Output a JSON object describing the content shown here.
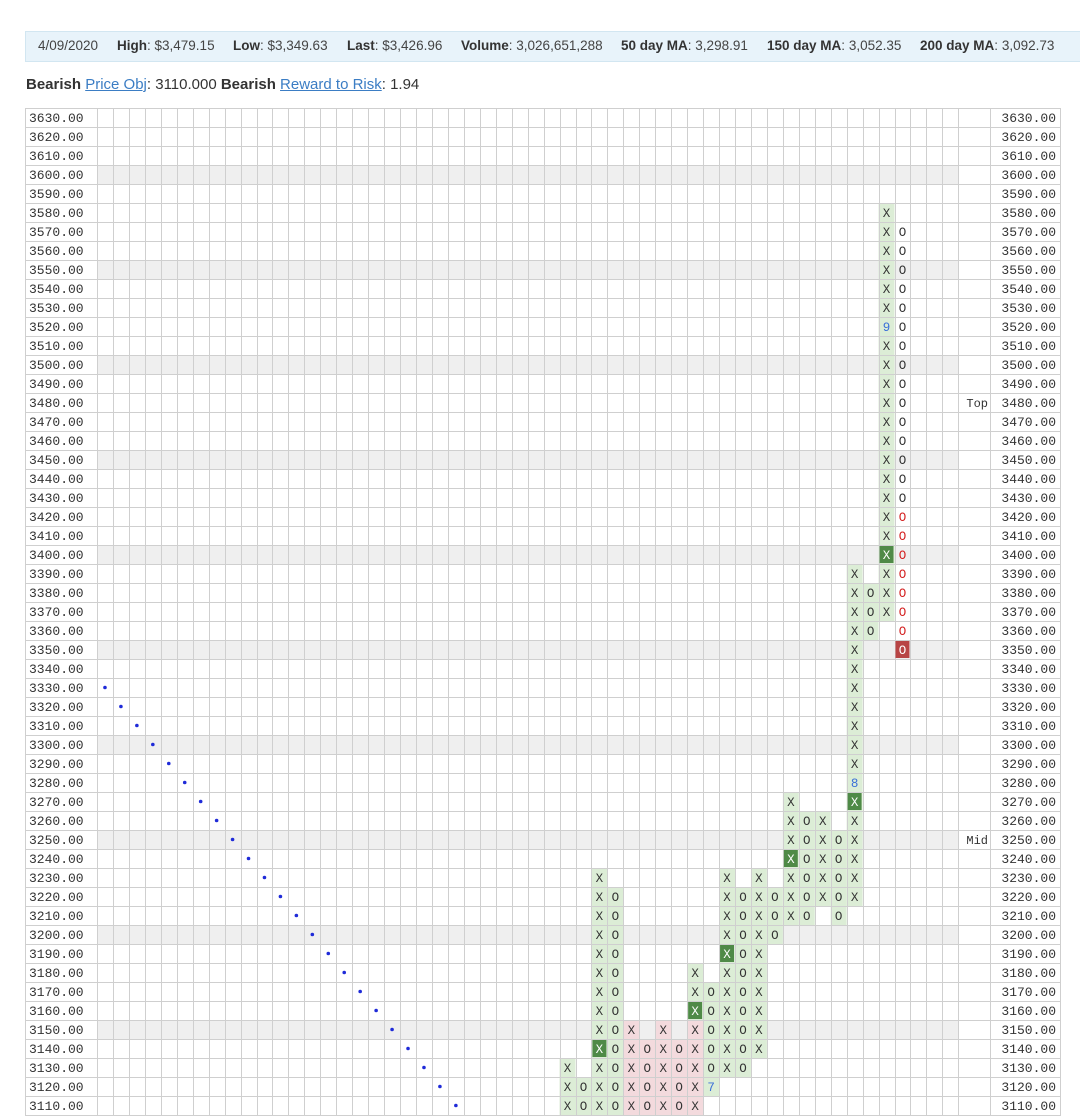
{
  "stats": {
    "date": "4/09/2020",
    "high_label": "High",
    "high": "$3,479.15",
    "low_label": "Low",
    "low": "$3,349.63",
    "last_label": "Last",
    "last": "$3,426.96",
    "volume_label": "Volume",
    "volume": "3,026,651,288",
    "ma50_label": "50 day MA",
    "ma50": "3,298.91",
    "ma150_label": "150 day MA",
    "ma150": "3,052.35",
    "ma200_label": "200 day MA",
    "ma200": "3,092.73"
  },
  "objective": {
    "bearish1": "Bearish",
    "price_obj_link": "Price Obj",
    "price_obj_value": ": 3110.000 ",
    "bearish2": "Bearish",
    "reward_link": "Reward to Risk",
    "reward_value": ": 1.94"
  },
  "chart_data": {
    "type": "point-and-figure",
    "box_size": 10,
    "y_labels": [
      "3630.00",
      "3620.00",
      "3610.00",
      "3600.00",
      "3590.00",
      "3580.00",
      "3570.00",
      "3560.00",
      "3550.00",
      "3540.00",
      "3530.00",
      "3520.00",
      "3510.00",
      "3500.00",
      "3490.00",
      "3480.00",
      "3470.00",
      "3460.00",
      "3450.00",
      "3440.00",
      "3430.00",
      "3420.00",
      "3410.00",
      "3400.00",
      "3390.00",
      "3380.00",
      "3370.00",
      "3360.00",
      "3350.00",
      "3340.00",
      "3330.00",
      "3320.00",
      "3310.00",
      "3300.00",
      "3290.00",
      "3280.00",
      "3270.00",
      "3260.00",
      "3250.00",
      "3240.00",
      "3230.00",
      "3220.00",
      "3210.00",
      "3200.00",
      "3190.00",
      "3180.00",
      "3170.00",
      "3160.00",
      "3150.00",
      "3140.00",
      "3130.00",
      "3120.00",
      "3110.00"
    ],
    "y_range": [
      3110,
      3630
    ],
    "num_columns": 54,
    "highlight_levels": [
      3600,
      3550,
      3500,
      3450,
      3400,
      3350,
      3300,
      3250,
      3200,
      3150
    ],
    "price_annotations": [
      {
        "level": 3480,
        "text": "Top"
      },
      {
        "level": 3250,
        "text": "Mid"
      }
    ],
    "trendline_dots": [
      {
        "col": 0,
        "level": 3330
      },
      {
        "col": 1,
        "level": 3320
      },
      {
        "col": 2,
        "level": 3310
      },
      {
        "col": 3,
        "level": 3300
      },
      {
        "col": 4,
        "level": 3290
      },
      {
        "col": 5,
        "level": 3280
      },
      {
        "col": 6,
        "level": 3270
      },
      {
        "col": 7,
        "level": 3260
      },
      {
        "col": 8,
        "level": 3250
      },
      {
        "col": 9,
        "level": 3240
      },
      {
        "col": 10,
        "level": 3230
      },
      {
        "col": 11,
        "level": 3220
      },
      {
        "col": 12,
        "level": 3210
      },
      {
        "col": 13,
        "level": 3200
      },
      {
        "col": 14,
        "level": 3190
      },
      {
        "col": 15,
        "level": 3180
      },
      {
        "col": 16,
        "level": 3170
      },
      {
        "col": 17,
        "level": 3160
      },
      {
        "col": 18,
        "level": 3150
      },
      {
        "col": 19,
        "level": 3140
      },
      {
        "col": 20,
        "level": 3130
      },
      {
        "col": 21,
        "level": 3120
      },
      {
        "col": 22,
        "level": 3110
      }
    ],
    "columns": [
      {
        "col": 29,
        "type": "X",
        "bg": "green",
        "low": 3110,
        "high": 3130
      },
      {
        "col": 30,
        "type": "O",
        "bg": "green",
        "low": 3110,
        "high": 3120
      },
      {
        "col": 31,
        "type": "X",
        "bg": "green",
        "low": 3110,
        "high": 3230,
        "boxed": [
          3140
        ]
      },
      {
        "col": 32,
        "type": "O",
        "bg": "green",
        "low": 3110,
        "high": 3220
      },
      {
        "col": 33,
        "type": "X",
        "bg": "red",
        "low": 3110,
        "high": 3150
      },
      {
        "col": 34,
        "type": "O",
        "bg": "red",
        "low": 3110,
        "high": 3140
      },
      {
        "col": 35,
        "type": "X",
        "bg": "red",
        "low": 3110,
        "high": 3150
      },
      {
        "col": 36,
        "type": "O",
        "bg": "red",
        "low": 3110,
        "high": 3140
      },
      {
        "col": 37,
        "type": "X",
        "bg": "red",
        "low": 3110,
        "high": 3180,
        "boxed": [
          3160
        ],
        "greenbg": [
          3160,
          3170,
          3180
        ]
      },
      {
        "col": 38,
        "type": "O",
        "bg": "green",
        "low": 3120,
        "high": 3170,
        "labels": {
          "3120": "7"
        }
      },
      {
        "col": 39,
        "type": "X",
        "bg": "green",
        "low": 3130,
        "high": 3230,
        "boxed": [
          3190
        ]
      },
      {
        "col": 40,
        "type": "O",
        "bg": "green",
        "low": 3130,
        "high": 3220
      },
      {
        "col": 41,
        "type": "X",
        "bg": "green",
        "low": 3140,
        "high": 3230
      },
      {
        "col": 42,
        "type": "O",
        "bg": "green",
        "low": 3200,
        "high": 3220
      },
      {
        "col": 43,
        "type": "X",
        "bg": "green",
        "low": 3210,
        "high": 3270,
        "boxed": [
          3240
        ]
      },
      {
        "col": 44,
        "type": "O",
        "bg": "green",
        "low": 3210,
        "high": 3260
      },
      {
        "col": 45,
        "type": "X",
        "bg": "green",
        "low": 3220,
        "high": 3260
      },
      {
        "col": 46,
        "type": "O",
        "bg": "green",
        "low": 3210,
        "high": 3250
      },
      {
        "col": 47,
        "type": "X",
        "bg": "green",
        "low": 3220,
        "high": 3390,
        "boxed": [
          3270
        ],
        "labels": {
          "3280": "8"
        }
      },
      {
        "col": 48,
        "type": "O",
        "bg": "green",
        "low": 3360,
        "high": 3380
      },
      {
        "col": 49,
        "type": "X",
        "bg": "green",
        "low": 3370,
        "high": 3580,
        "boxed": [
          3400
        ],
        "labels": {
          "3520": "9"
        }
      },
      {
        "col": 50,
        "type": "O",
        "bg": "none",
        "low": 3350,
        "high": 3570,
        "redmark": [
          3350,
          3360,
          3370,
          3380,
          3390,
          3400,
          3410,
          3420
        ],
        "redboxed": [
          3350
        ]
      }
    ]
  }
}
